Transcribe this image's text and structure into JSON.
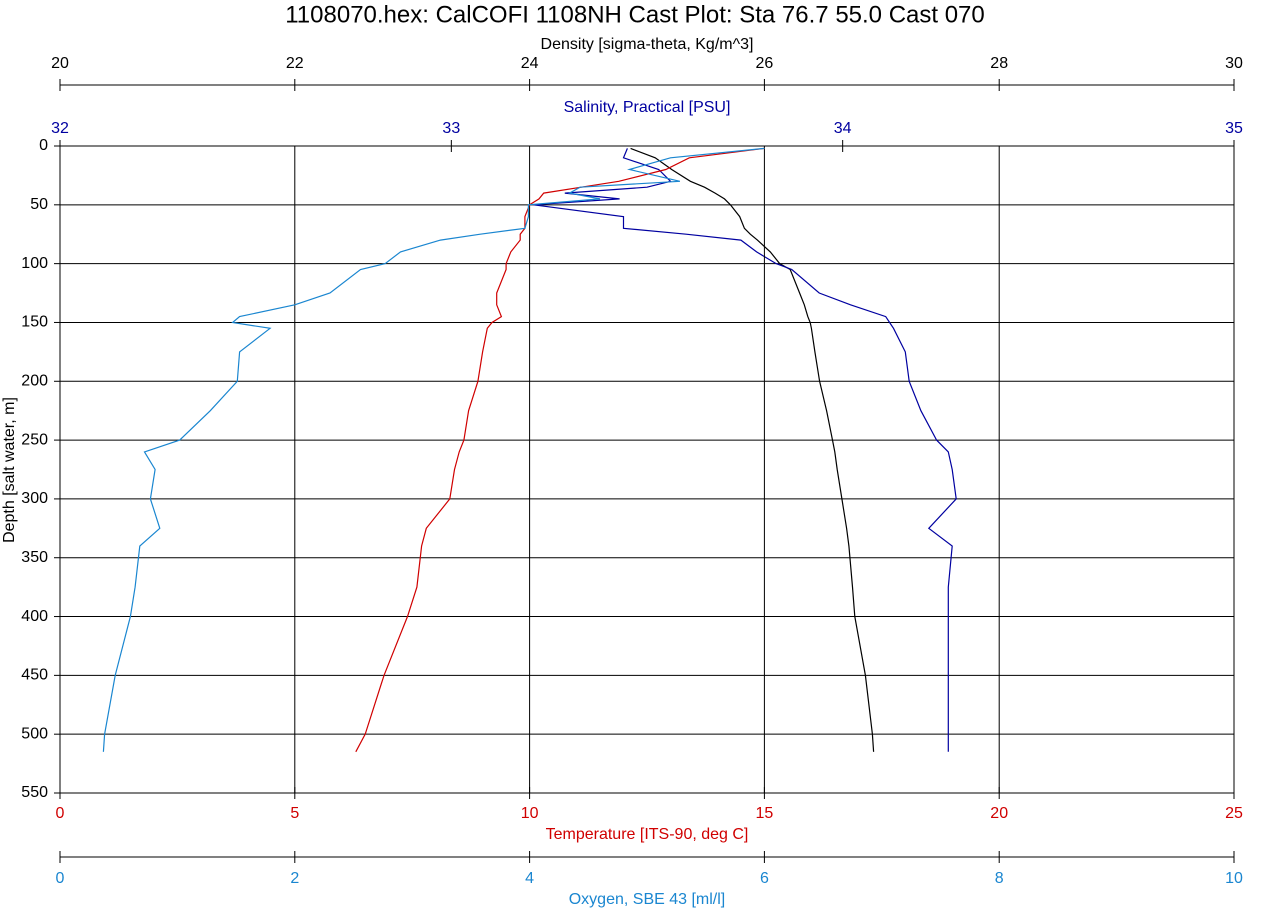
{
  "chart_data": {
    "type": "line",
    "title": "1108070.hex: CalCOFI 1108NH Cast Plot: Sta 76.7 55.0 Cast 070",
    "y_label": "Depth [salt water, m]",
    "ylim": [
      0,
      550
    ],
    "y_inverted": true,
    "yticks": [
      0,
      50,
      100,
      150,
      200,
      250,
      300,
      350,
      400,
      450,
      500,
      550
    ],
    "grid": true,
    "y": [
      2,
      10,
      20,
      30,
      35,
      40,
      45,
      50,
      60,
      70,
      75,
      80,
      90,
      100,
      105,
      125,
      135,
      145,
      150,
      155,
      175,
      200,
      225,
      250,
      260,
      275,
      300,
      325,
      340,
      375,
      400,
      450,
      500,
      515
    ],
    "series": [
      {
        "name": "Density [sigma-theta, Kg/m^3]",
        "color": "#000000",
        "axis_position": "top-outer",
        "xlim": [
          20,
          30
        ],
        "xticks": [
          20,
          22,
          24,
          26,
          28,
          30
        ],
        "x": [
          24.86,
          25.07,
          25.21,
          25.37,
          25.49,
          25.58,
          25.66,
          25.71,
          25.79,
          25.83,
          25.88,
          25.94,
          26.05,
          26.13,
          26.22,
          26.3,
          26.34,
          26.37,
          26.39,
          26.4,
          26.43,
          26.47,
          26.53,
          26.58,
          26.6,
          26.62,
          26.66,
          26.7,
          26.72,
          26.75,
          26.77,
          26.86,
          26.92,
          26.93
        ]
      },
      {
        "name": "Salinity, Practical [PSU]",
        "color": "#0000a0",
        "axis_position": "top",
        "xlim": [
          32,
          35
        ],
        "xticks": [
          32,
          33,
          34,
          35
        ],
        "x": [
          33.45,
          33.44,
          33.53,
          33.56,
          33.5,
          33.29,
          33.43,
          33.21,
          33.44,
          33.44,
          33.6,
          33.74,
          33.78,
          33.83,
          33.87,
          33.94,
          34.02,
          34.11,
          34.12,
          34.13,
          34.16,
          34.17,
          34.2,
          34.24,
          34.27,
          34.28,
          34.29,
          34.22,
          34.28,
          34.27,
          34.27,
          34.27,
          34.27,
          34.27
        ]
      },
      {
        "name": "Temperature [ITS-90, deg C]",
        "color": "#d00000",
        "axis_position": "bottom",
        "grid": true,
        "xlim": [
          0,
          25
        ],
        "xticks": [
          0,
          5,
          10,
          15,
          20,
          25
        ],
        "x": [
          15.0,
          13.4,
          12.9,
          11.9,
          11.1,
          10.3,
          10.2,
          10.0,
          9.9,
          9.9,
          9.8,
          9.8,
          9.6,
          9.5,
          9.5,
          9.3,
          9.3,
          9.4,
          9.2,
          9.1,
          9.0,
          8.9,
          8.7,
          8.6,
          8.5,
          8.4,
          8.3,
          7.8,
          7.7,
          7.6,
          7.4,
          6.9,
          6.5,
          6.3
        ]
      },
      {
        "name": "Oxygen, SBE 43 [ml/l]",
        "color": "#1a86d0",
        "axis_position": "bottom-outer",
        "xlim": [
          0,
          10
        ],
        "xticks": [
          0,
          2,
          4,
          6,
          8,
          10
        ],
        "x": [
          6.0,
          5.2,
          4.85,
          5.28,
          4.43,
          4.34,
          4.6,
          3.99,
          3.99,
          3.96,
          3.58,
          3.24,
          2.9,
          2.77,
          2.56,
          2.3,
          2.0,
          1.53,
          1.47,
          1.79,
          1.53,
          1.51,
          1.28,
          1.02,
          0.72,
          0.81,
          0.77,
          0.85,
          0.68,
          0.64,
          0.6,
          0.47,
          0.38,
          0.37
        ]
      }
    ]
  }
}
